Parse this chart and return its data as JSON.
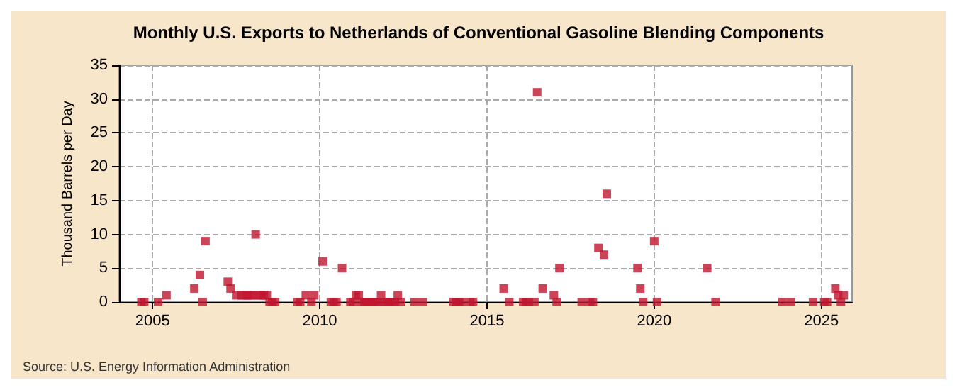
{
  "chart_data": {
    "type": "scatter",
    "title": "Monthly U.S. Exports to Netherlands of Conventional Gasoline Blending Components",
    "ylabel": "Thousand Barrels per Day",
    "annotations": [
      "Source: U.S. Energy Information Administration"
    ],
    "x": [
      "2004-09",
      "2004-10",
      "2005-03",
      "2005-06",
      "2006-04",
      "2006-06",
      "2006-07",
      "2006-08",
      "2007-04",
      "2007-05",
      "2007-07",
      "2007-09",
      "2007-10",
      "2007-11",
      "2007-12",
      "2008-01",
      "2008-02",
      "2008-03",
      "2008-04",
      "2008-05",
      "2008-06",
      "2008-07",
      "2008-08",
      "2008-09",
      "2009-05",
      "2009-06",
      "2009-08",
      "2009-10",
      "2009-11",
      "2010-02",
      "2010-05",
      "2010-06",
      "2010-07",
      "2010-09",
      "2010-12",
      "2011-01",
      "2011-02",
      "2011-03",
      "2011-04",
      "2011-05",
      "2011-06",
      "2011-07",
      "2011-08",
      "2011-09",
      "2011-10",
      "2011-11",
      "2011-12",
      "2012-01",
      "2012-02",
      "2012-03",
      "2012-04",
      "2012-05",
      "2012-06",
      "2012-11",
      "2013-02",
      "2014-01",
      "2014-02",
      "2014-03",
      "2014-04",
      "2014-07",
      "2014-08",
      "2015-07",
      "2015-09",
      "2016-02",
      "2016-03",
      "2016-04",
      "2016-06",
      "2016-07",
      "2016-09",
      "2017-01",
      "2017-02",
      "2017-03",
      "2017-11",
      "2018-02",
      "2018-03",
      "2018-05",
      "2018-07",
      "2018-08",
      "2019-07",
      "2019-08",
      "2019-09",
      "2020-01",
      "2020-02",
      "2021-08",
      "2021-11",
      "2023-11",
      "2024-02",
      "2024-10",
      "2025-02",
      "2025-03",
      "2025-06",
      "2025-07",
      "2025-08",
      "2025-09"
    ],
    "series": [
      {
        "color": "#c0152f",
        "values": [
          0,
          0,
          0,
          1,
          2,
          4,
          0,
          9,
          3,
          2,
          1,
          1,
          1,
          1,
          1,
          1,
          10,
          1,
          1,
          1,
          1,
          0,
          0,
          0,
          0,
          0,
          1,
          0,
          1,
          6,
          0,
          0,
          0,
          5,
          0,
          0,
          1,
          1,
          0,
          0,
          0,
          0,
          0,
          0,
          0,
          1,
          0,
          0,
          0,
          0,
          0,
          1,
          0,
          0,
          0,
          0,
          0,
          0,
          0,
          0,
          0,
          2,
          0,
          0,
          0,
          0,
          0,
          31,
          2,
          1,
          0,
          5,
          0,
          0,
          0,
          8,
          7,
          16,
          5,
          2,
          0,
          9,
          0,
          5,
          0,
          0,
          0,
          0,
          0,
          0,
          2,
          1,
          0,
          1
        ]
      }
    ],
    "xlim": [
      "2004-01",
      "2025-12"
    ],
    "xticks": [
      "2005",
      "2010",
      "2015",
      "2020",
      "2025"
    ],
    "ylim": [
      0,
      35
    ],
    "yticks": [
      0,
      5,
      10,
      15,
      20,
      25,
      30,
      35
    ],
    "grid": true,
    "marker": "square"
  }
}
